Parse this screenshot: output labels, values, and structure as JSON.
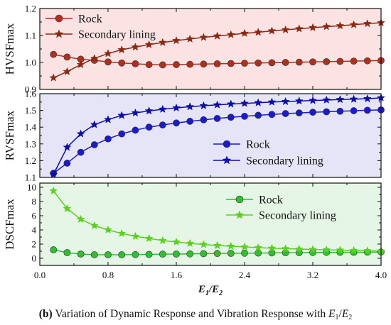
{
  "chart_data": [
    {
      "type": "line",
      "ylabel": "HVSFmax",
      "ylim": [
        0.9,
        1.2
      ],
      "yticks": [
        "0.9",
        "1.0",
        "1.1",
        "1.2"
      ],
      "xlim": [
        0,
        4.0
      ],
      "grid": false,
      "legend_position": "top-left",
      "background": "#fbe3e3",
      "x": [
        0.16,
        0.32,
        0.48,
        0.64,
        0.8,
        0.96,
        1.12,
        1.28,
        1.44,
        1.6,
        1.76,
        1.92,
        2.08,
        2.24,
        2.4,
        2.56,
        2.72,
        2.88,
        3.04,
        3.2,
        3.36,
        3.52,
        3.68,
        3.84,
        4.0
      ],
      "series": [
        {
          "name": "Rock",
          "marker": "circle",
          "color": "#b03020",
          "values": [
            1.03,
            1.02,
            1.012,
            1.008,
            1.002,
            0.998,
            0.995,
            0.992,
            0.991,
            0.992,
            0.993,
            0.994,
            0.995,
            0.996,
            0.997,
            0.998,
            0.999,
            1.0,
            1.001,
            1.002,
            1.003,
            1.004,
            1.005,
            1.006,
            1.007
          ]
        },
        {
          "name": "Secondary lining",
          "marker": "star",
          "color": "#8b2a14",
          "values": [
            0.943,
            0.966,
            0.992,
            1.015,
            1.033,
            1.047,
            1.057,
            1.066,
            1.074,
            1.081,
            1.087,
            1.093,
            1.098,
            1.103,
            1.108,
            1.112,
            1.117,
            1.121,
            1.125,
            1.129,
            1.133,
            1.136,
            1.14,
            1.144,
            1.147
          ]
        }
      ]
    },
    {
      "type": "line",
      "ylabel": "RVSFmax",
      "ylim": [
        1.1,
        1.6
      ],
      "yticks": [
        "1.1",
        "1.2",
        "1.3",
        "1.4",
        "1.5",
        "1.6"
      ],
      "xlim": [
        0,
        4.0
      ],
      "grid": false,
      "legend_position": "bottom-right",
      "background": "#e5e5f7",
      "x": [
        0.16,
        0.32,
        0.48,
        0.64,
        0.8,
        0.96,
        1.12,
        1.28,
        1.44,
        1.6,
        1.76,
        1.92,
        2.08,
        2.24,
        2.4,
        2.56,
        2.72,
        2.88,
        3.04,
        3.2,
        3.36,
        3.52,
        3.68,
        3.84,
        4.0
      ],
      "series": [
        {
          "name": "Rock",
          "marker": "circle",
          "color": "#1a1ad0",
          "values": [
            1.125,
            1.185,
            1.25,
            1.295,
            1.33,
            1.36,
            1.382,
            1.4,
            1.413,
            1.425,
            1.435,
            1.444,
            1.452,
            1.459,
            1.465,
            1.471,
            1.476,
            1.481,
            1.485,
            1.489,
            1.492,
            1.495,
            1.498,
            1.501,
            1.503
          ]
        },
        {
          "name": "Secondary lining",
          "marker": "star",
          "color": "#0d0daa",
          "values": [
            1.118,
            1.28,
            1.36,
            1.415,
            1.445,
            1.47,
            1.485,
            1.497,
            1.507,
            1.515,
            1.522,
            1.528,
            1.533,
            1.538,
            1.542,
            1.546,
            1.55,
            1.553,
            1.556,
            1.559,
            1.562,
            1.565,
            1.567,
            1.57,
            1.575
          ]
        }
      ]
    },
    {
      "type": "line",
      "ylabel": "DSCFmax",
      "ylim": [
        -1,
        10.6
      ],
      "yticks": [
        "0",
        "2",
        "4",
        "6",
        "8",
        "10"
      ],
      "xlabel_parts": [
        "E",
        "1",
        "/E",
        "2"
      ],
      "xlim": [
        0,
        4.0
      ],
      "xticks": [
        "0.0",
        "0.8",
        "1.6",
        "2.4",
        "3.2",
        "4.0"
      ],
      "grid": false,
      "legend_position": "top-right",
      "background": "#e6f6e6",
      "x": [
        0.16,
        0.32,
        0.48,
        0.64,
        0.8,
        0.96,
        1.12,
        1.28,
        1.44,
        1.6,
        1.76,
        1.92,
        2.08,
        2.24,
        2.4,
        2.56,
        2.72,
        2.88,
        3.04,
        3.2,
        3.36,
        3.52,
        3.68,
        3.84,
        4.0
      ],
      "series": [
        {
          "name": "Rock",
          "marker": "circle",
          "color": "#2fbf2f",
          "values": [
            1.2,
            0.8,
            0.6,
            0.5,
            0.5,
            0.5,
            0.52,
            0.55,
            0.58,
            0.6,
            0.62,
            0.65,
            0.68,
            0.7,
            0.72,
            0.74,
            0.76,
            0.78,
            0.8,
            0.82,
            0.83,
            0.84,
            0.85,
            0.86,
            0.88
          ]
        },
        {
          "name": "Secondary lining",
          "marker": "star",
          "color": "#5ccf22",
          "values": [
            9.5,
            7.0,
            5.5,
            4.6,
            4.0,
            3.5,
            3.1,
            2.8,
            2.5,
            2.3,
            2.1,
            1.95,
            1.8,
            1.7,
            1.6,
            1.5,
            1.42,
            1.36,
            1.3,
            1.25,
            1.2,
            1.15,
            1.1,
            1.07,
            1.03
          ]
        }
      ]
    }
  ],
  "caption": {
    "label": "(b)",
    "text_before": "Variation of Dynamic Response and Vibration Response with ",
    "var1": "E",
    "sub1": "1",
    "slash": "/",
    "var2": "E",
    "sub2": "2"
  }
}
